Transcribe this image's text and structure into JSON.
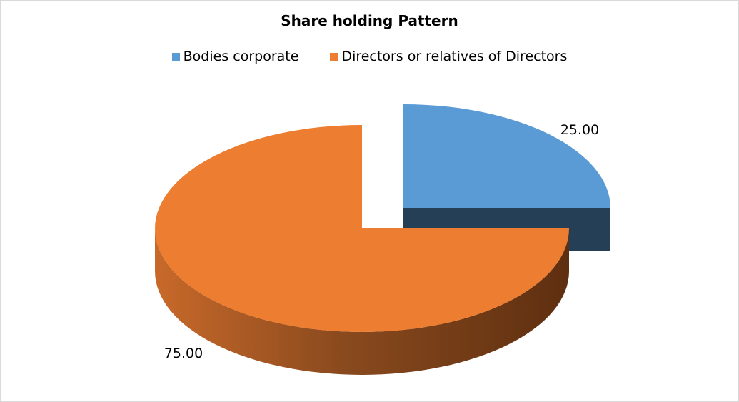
{
  "chart_data": {
    "type": "pie",
    "title": "Share holding Pattern",
    "legend_position": "top",
    "categories": [
      "Bodies corporate",
      "Directors or relatives of Directors"
    ],
    "values": [
      25.0,
      75.0
    ],
    "data_labels": [
      "25.00",
      "75.00"
    ],
    "colors": [
      "#5b9bd5",
      "#ed7d31"
    ],
    "exploded": [
      true,
      false
    ],
    "style": "3d"
  }
}
